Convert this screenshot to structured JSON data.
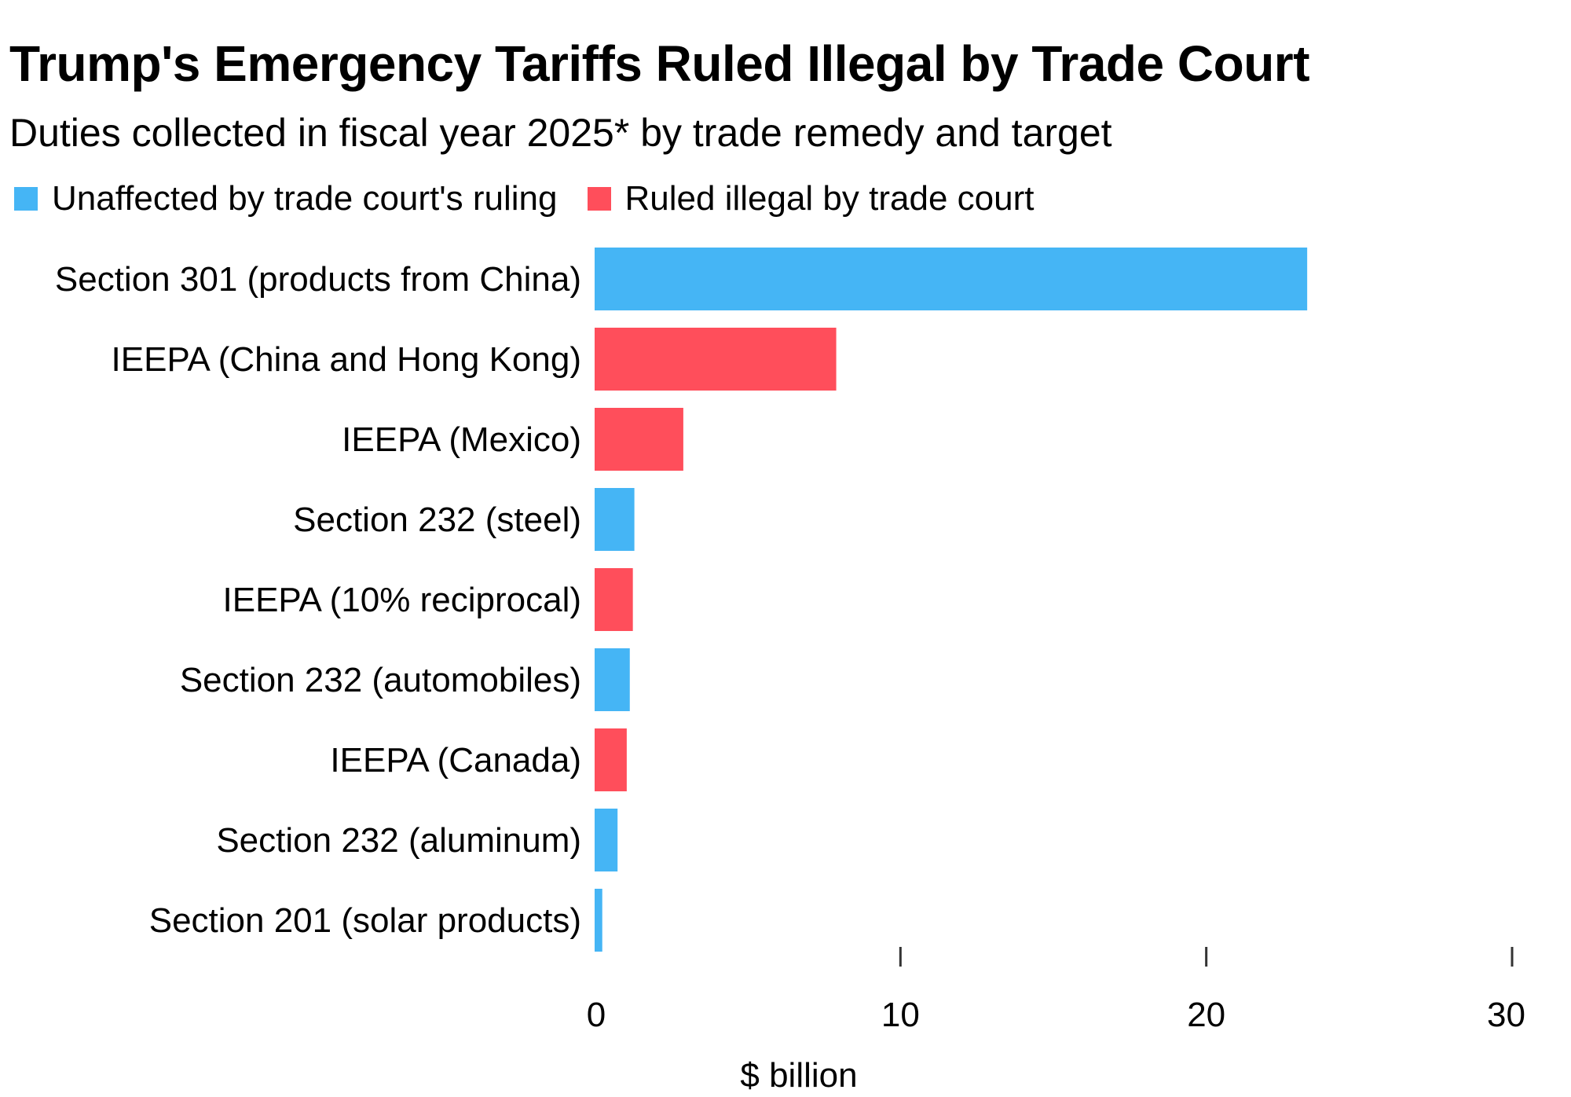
{
  "header": {
    "title": "Trump's Emergency Tariffs Ruled Illegal by Trade Court",
    "subtitle": "Duties collected in fiscal year 2025* by trade remedy and target"
  },
  "legend": {
    "items": [
      {
        "label": "Unaffected by trade court's ruling",
        "color": "#45b5f5"
      },
      {
        "label": "Ruled illegal by trade court",
        "color": "#ff4e5b"
      }
    ]
  },
  "chart_data": {
    "type": "bar",
    "orientation": "horizontal",
    "title": "Trump's Emergency Tariffs Ruled Illegal by Trade Court",
    "subtitle": "Duties collected in fiscal year 2025* by trade remedy and target",
    "xlabel": "$ billion",
    "ylabel": "",
    "xlim": [
      0,
      30
    ],
    "xticks": [
      0,
      10,
      20,
      30
    ],
    "grid": false,
    "legend_position": "top-left",
    "categories": [
      "Section 301 (products from China)",
      "IEEPA (China and Hong Kong)",
      "IEEPA (Mexico)",
      "Section 232 (steel)",
      "IEEPA (10% reciprocal)",
      "Section 232 (automobiles)",
      "IEEPA (Canada)",
      "Section 232 (aluminum)",
      "Section 201 (solar products)"
    ],
    "values": [
      23.3,
      7.9,
      2.9,
      1.3,
      1.25,
      1.15,
      1.05,
      0.75,
      0.25
    ],
    "groups": [
      "unaffected",
      "illegal",
      "illegal",
      "unaffected",
      "illegal",
      "unaffected",
      "illegal",
      "unaffected",
      "unaffected"
    ],
    "series": [
      {
        "name": "Unaffected by trade court's ruling",
        "key": "unaffected",
        "color": "#45b5f5"
      },
      {
        "name": "Ruled illegal by trade court",
        "key": "illegal",
        "color": "#ff4e5b"
      }
    ]
  }
}
